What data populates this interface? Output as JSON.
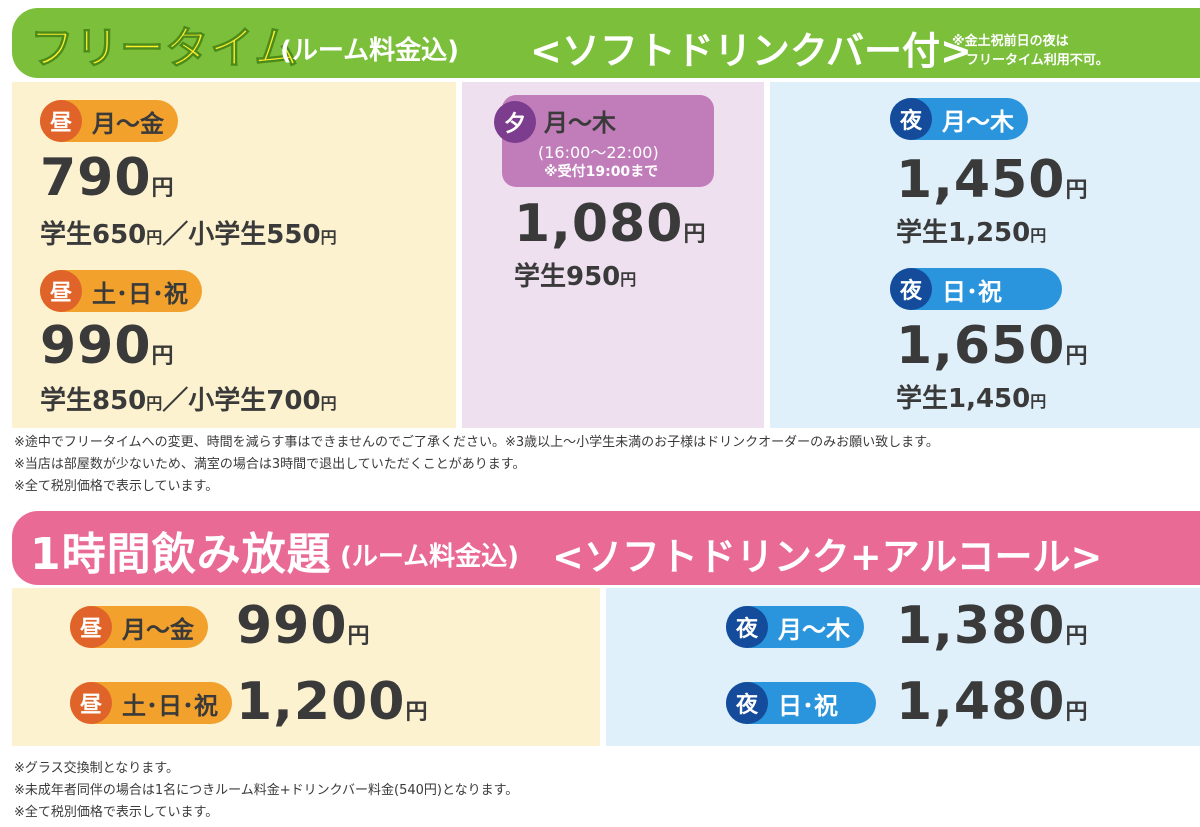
{
  "freetime": {
    "title": "フリータイム",
    "subtitle": "(ルーム料金込)",
    "bracket": "<ソフトドリンクバー付>",
    "note_line1": "※金土祝前日の夜は",
    "note_line2": "フリータイム利用不可。",
    "day_weekday": {
      "badge": "昼",
      "label": "月〜金",
      "price": "790",
      "yen": "円",
      "student": "学生650",
      "student_yen": "円",
      "slash": "／小学生550",
      "child_yen": "円"
    },
    "day_weekend": {
      "badge": "昼",
      "label": "土･日･祝",
      "price": "990",
      "yen": "円",
      "student": "学生850",
      "student_yen": "円",
      "slash": "／小学生700",
      "child_yen": "円"
    },
    "evening": {
      "badge": "夕",
      "label": "月〜木",
      "time": "(16:00〜22:00)",
      "reception": "※受付19:00まで",
      "price": "1,080",
      "yen": "円",
      "student": "学生950",
      "student_yen": "円"
    },
    "night_weekday": {
      "badge": "夜",
      "label": "月〜木",
      "price": "1,450",
      "yen": "円",
      "student": "学生1,250",
      "student_yen": "円"
    },
    "night_weekend": {
      "badge": "夜",
      "label": "日･祝",
      "price": "1,650",
      "yen": "円",
      "student": "学生1,450",
      "student_yen": "円"
    },
    "notes": [
      "※途中でフリータイムへの変更、時間を減らす事はできませんのでご了承ください。※3歳以上〜小学生未満のお子様はドリンクオーダーのみお願い致します。",
      "※当店は部屋数が少ないため、満室の場合は3時間で退出していただくことがあります。",
      "※全て税別価格で表示しています。"
    ]
  },
  "drinks": {
    "title": "1時間飲み放題",
    "subtitle": "(ルーム料金込)",
    "bracket": "<ソフトドリンク+アルコール>",
    "day_weekday": {
      "badge": "昼",
      "label": "月〜金",
      "price": "990",
      "yen": "円"
    },
    "day_weekend": {
      "badge": "昼",
      "label": "土･日･祝",
      "price": "1,200",
      "yen": "円"
    },
    "night_weekday": {
      "badge": "夜",
      "label": "月〜木",
      "price": "1,380",
      "yen": "円"
    },
    "night_weekend": {
      "badge": "夜",
      "label": "日･祝",
      "price": "1,480",
      "yen": "円"
    },
    "notes": [
      "※グラス交換制となります。",
      "※未成年者同伴の場合は1名につきルーム料金+ドリンクバー料金(540円)となります。",
      "※全て税別価格で表示しています。"
    ]
  },
  "colors": {
    "green_bar": "#7bbf3a",
    "pink_bar": "#ea6a96",
    "day_bg": "#fdf2cf",
    "evening_bg": "#efe0f0",
    "night_bg": "#dff0fa",
    "day_badge": "#f1a12c",
    "night_badge": "#2a95dc",
    "evening_badge": "#c17cba",
    "title_yellow": "#ffef2b"
  }
}
